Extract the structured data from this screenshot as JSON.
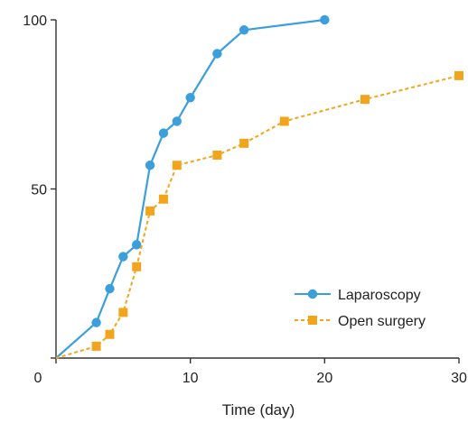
{
  "chart_data": {
    "type": "line",
    "xlabel": "Time (day)",
    "ylabel": "",
    "xlim": [
      0,
      30
    ],
    "ylim": [
      0,
      100
    ],
    "x_ticks": [
      0,
      10,
      20,
      30
    ],
    "y_ticks": [
      0,
      50,
      100
    ],
    "x_tick_labels": [
      "0",
      "10",
      "20",
      "30"
    ],
    "y_tick_labels": [
      "50",
      "100"
    ],
    "grid": false,
    "legend_position": "bottom-right",
    "series": [
      {
        "name": "Laparoscopy",
        "color": "#3b9fdc",
        "line_style": "solid",
        "marker": "circle",
        "points": [
          [
            0,
            0
          ],
          [
            3,
            10.5
          ],
          [
            4,
            20.5
          ],
          [
            5,
            30
          ],
          [
            6,
            33.5
          ],
          [
            7,
            57
          ],
          [
            8,
            66.5
          ],
          [
            9,
            70
          ],
          [
            10,
            77
          ],
          [
            12,
            90
          ],
          [
            14,
            97
          ],
          [
            20,
            100
          ]
        ]
      },
      {
        "name": "Open surgery",
        "color": "#f2a51a",
        "line_style": "dashed",
        "marker": "square",
        "points": [
          [
            0,
            0
          ],
          [
            3,
            3.5
          ],
          [
            4,
            7
          ],
          [
            5,
            13.5
          ],
          [
            6,
            27
          ],
          [
            7,
            43.5
          ],
          [
            8,
            47
          ],
          [
            9,
            57
          ],
          [
            12,
            60
          ],
          [
            14,
            63.5
          ],
          [
            17,
            70
          ],
          [
            23,
            76.5
          ],
          [
            30,
            83.5
          ]
        ]
      }
    ]
  }
}
